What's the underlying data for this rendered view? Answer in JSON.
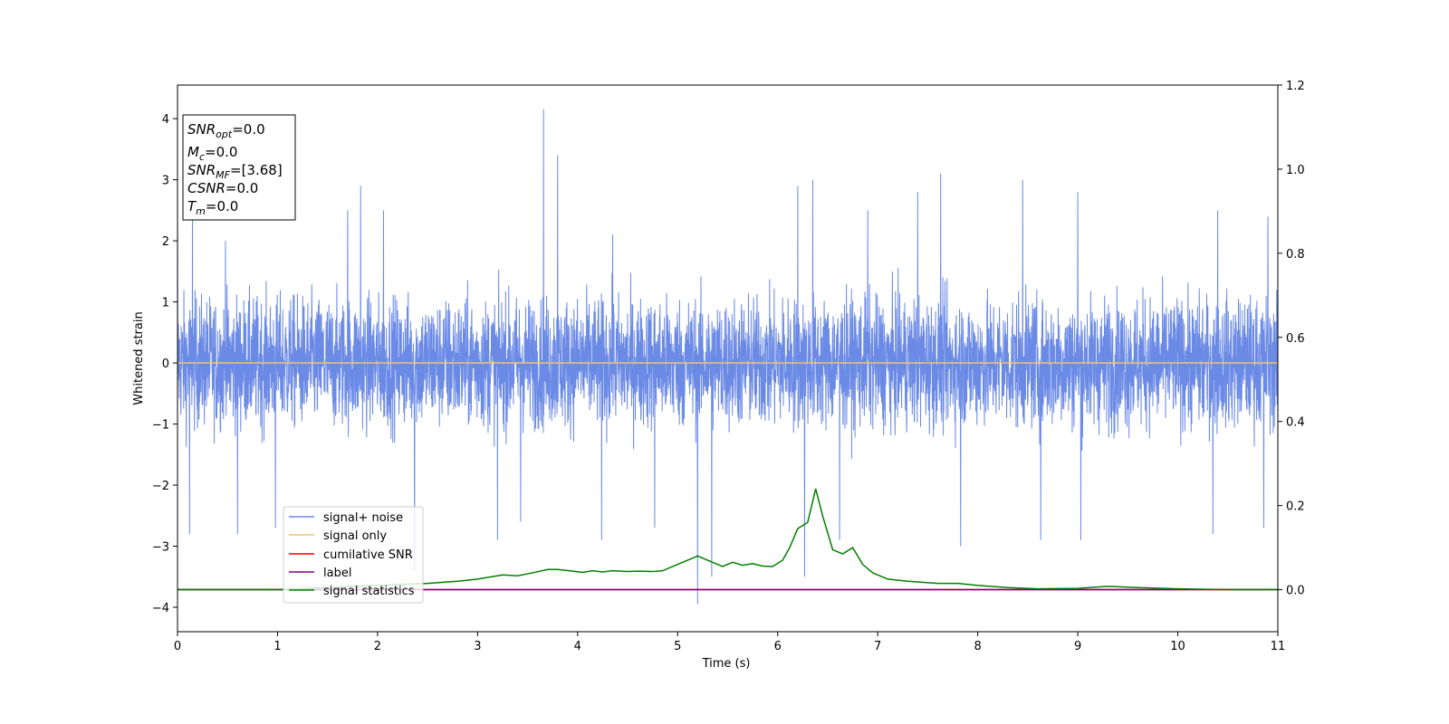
{
  "chart_data": {
    "type": "line",
    "xlabel": "Time (s)",
    "ylabel": "Whitened strain",
    "xlim": [
      0,
      11
    ],
    "ylim": [
      -4.4,
      4.55
    ],
    "y2lim": [
      -0.1,
      1.2
    ],
    "x_ticks": [
      0,
      1,
      2,
      3,
      4,
      5,
      6,
      7,
      8,
      9,
      10,
      11
    ],
    "y_ticks": [
      -4,
      -3,
      -2,
      -1,
      0,
      1,
      2,
      3,
      4
    ],
    "y2_ticks": [
      0.0,
      0.2,
      0.4,
      0.6,
      0.8,
      1.0,
      1.2
    ],
    "x_tick_labels": [
      "0",
      "1",
      "2",
      "3",
      "4",
      "5",
      "6",
      "7",
      "8",
      "9",
      "10",
      "11"
    ],
    "y_tick_labels": [
      "−4",
      "−3",
      "−2",
      "−1",
      "0",
      "1",
      "2",
      "3",
      "4"
    ],
    "y2_tick_labels": [
      "0.0",
      "0.2",
      "0.4",
      "0.6",
      "0.8",
      "1.0",
      "1.2"
    ],
    "grid": false,
    "legend_position": "lower-left",
    "series": [
      {
        "name": "signal+ noise",
        "color": "#6b8ae6",
        "axis": "left",
        "description_only": true,
        "envelope": {
          "peaks": [
            [
              0.0,
              2.9
            ],
            [
              0.15,
              2.7
            ],
            [
              0.48,
              2.0
            ],
            [
              1.7,
              2.5
            ],
            [
              1.83,
              2.9
            ],
            [
              2.06,
              2.5
            ],
            [
              3.66,
              4.15
            ],
            [
              3.8,
              3.4
            ],
            [
              4.35,
              2.1
            ],
            [
              5.2,
              2.1
            ],
            [
              6.2,
              2.9
            ],
            [
              6.35,
              3.0
            ],
            [
              6.9,
              2.5
            ],
            [
              7.4,
              2.8
            ],
            [
              7.63,
              3.1
            ],
            [
              8.45,
              3.0
            ],
            [
              9.0,
              2.8
            ],
            [
              10.4,
              2.5
            ],
            [
              10.9,
              2.4
            ]
          ],
          "troughs": [
            [
              0.12,
              -2.8
            ],
            [
              0.6,
              -2.8
            ],
            [
              0.98,
              -2.7
            ],
            [
              2.37,
              -3.4
            ],
            [
              3.2,
              -2.9
            ],
            [
              3.43,
              -2.6
            ],
            [
              4.24,
              -2.9
            ],
            [
              4.77,
              -2.7
            ],
            [
              5.2,
              -3.95
            ],
            [
              5.34,
              -3.5
            ],
            [
              6.27,
              -3.5
            ],
            [
              6.62,
              -2.9
            ],
            [
              7.83,
              -3.0
            ],
            [
              8.63,
              -2.9
            ],
            [
              9.03,
              -2.9
            ],
            [
              10.35,
              -2.8
            ],
            [
              10.86,
              -2.7
            ]
          ],
          "typical_band": [
            -1.4,
            1.35
          ]
        }
      },
      {
        "name": "signal only",
        "color": "#f5c26b",
        "axis": "left",
        "x": [
          0,
          11
        ],
        "y": [
          0,
          0
        ]
      },
      {
        "name": "cumilative SNR",
        "color": "#ff0000",
        "axis": "right",
        "x": [
          0,
          11
        ],
        "y": [
          0,
          0
        ]
      },
      {
        "name": "label",
        "color": "#800080",
        "axis": "right",
        "x": [
          0,
          11
        ],
        "y": [
          0,
          0
        ]
      },
      {
        "name": "signal statistics",
        "color": "#008000",
        "axis": "right",
        "x": [
          0.0,
          0.5,
          1.0,
          1.5,
          2.0,
          2.5,
          2.8,
          3.0,
          3.25,
          3.4,
          3.55,
          3.7,
          3.8,
          3.95,
          4.05,
          4.15,
          4.25,
          4.35,
          4.5,
          4.6,
          4.75,
          4.85,
          4.95,
          5.05,
          5.2,
          5.3,
          5.45,
          5.55,
          5.65,
          5.75,
          5.85,
          5.95,
          6.05,
          6.12,
          6.2,
          6.3,
          6.38,
          6.45,
          6.55,
          6.65,
          6.75,
          6.85,
          6.95,
          7.1,
          7.3,
          7.6,
          7.8,
          8.0,
          8.3,
          8.6,
          9.0,
          9.3,
          9.6,
          10.0,
          10.5,
          11.0
        ],
        "y": [
          0.0,
          0.0,
          0.0,
          0.005,
          0.01,
          0.015,
          0.02,
          0.025,
          0.035,
          0.033,
          0.04,
          0.048,
          0.048,
          0.044,
          0.041,
          0.045,
          0.042,
          0.045,
          0.043,
          0.044,
          0.043,
          0.045,
          0.055,
          0.065,
          0.08,
          0.07,
          0.055,
          0.065,
          0.058,
          0.062,
          0.056,
          0.055,
          0.07,
          0.1,
          0.145,
          0.16,
          0.24,
          0.175,
          0.095,
          0.085,
          0.1,
          0.06,
          0.04,
          0.025,
          0.02,
          0.015,
          0.015,
          0.01,
          0.005,
          0.002,
          0.003,
          0.008,
          0.005,
          0.002,
          0.0,
          0.0
        ]
      }
    ],
    "annotation_lines": [
      {
        "symbol": "SNR",
        "sub": "opt",
        "value": "=0.0"
      },
      {
        "symbol": "M",
        "sub": "c",
        "value": "=0.0"
      },
      {
        "symbol": "SNR",
        "sub": "MF",
        "value": "=[3.68]"
      },
      {
        "symbol": "CSNR",
        "sub": "",
        "value": "=0.0"
      },
      {
        "symbol": "T",
        "sub": "m",
        "value": "=0.0"
      }
    ]
  }
}
